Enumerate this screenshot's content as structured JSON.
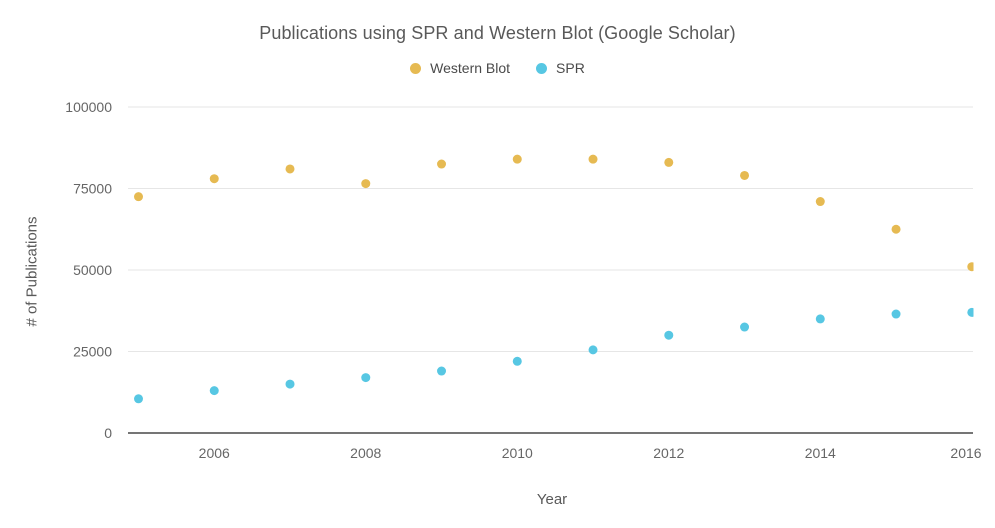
{
  "title": "Publications using SPR and Western Blot (Google Scholar)",
  "legend": {
    "items": [
      {
        "label": "Western Blot",
        "color": "#E6BA52"
      },
      {
        "label": "SPR",
        "color": "#57C7E3"
      }
    ]
  },
  "chart_data": {
    "type": "scatter",
    "title": "Publications using SPR and Western Blot (Google Scholar)",
    "xlabel": "Year",
    "ylabel": "# of Publications",
    "x": [
      2005,
      2006,
      2007,
      2008,
      2009,
      2010,
      2011,
      2012,
      2013,
      2014,
      2015,
      2016
    ],
    "series": [
      {
        "name": "Western Blot",
        "color": "#E6BA52",
        "values": [
          72500,
          78000,
          81000,
          76500,
          82500,
          84000,
          84000,
          83000,
          79000,
          71000,
          62500,
          51000
        ]
      },
      {
        "name": "SPR",
        "color": "#57C7E3",
        "values": [
          10500,
          13000,
          15000,
          17000,
          19000,
          22000,
          25500,
          30000,
          32500,
          35000,
          36500,
          37000
        ]
      }
    ],
    "ylim": [
      0,
      100000
    ],
    "yticks": [
      0,
      25000,
      50000,
      75000,
      100000
    ],
    "xticks": [
      2006,
      2008,
      2010,
      2012,
      2014,
      2016
    ],
    "grid": true,
    "legend_position": "top",
    "colors": {
      "gridline": "#e6e6e6",
      "axis_line": "#757575",
      "tick_label": "#666666",
      "axis_title": "#595959",
      "title": "#595959"
    }
  }
}
